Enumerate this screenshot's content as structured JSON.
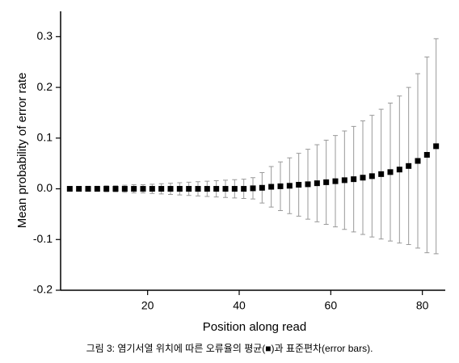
{
  "chart_data": {
    "type": "errorbar",
    "xlabel": "Position along read",
    "ylabel": "Mean probability of error rate",
    "caption": "그림 3: 염기서열 위치에 따른 오류율의 평균(■)과 표준편차(error bars).",
    "x": [
      3,
      5,
      7,
      9,
      11,
      13,
      15,
      17,
      19,
      21,
      23,
      25,
      27,
      29,
      31,
      33,
      35,
      37,
      39,
      41,
      43,
      45,
      47,
      49,
      51,
      53,
      55,
      57,
      59,
      61,
      63,
      65,
      67,
      69,
      71,
      73,
      75,
      77,
      79,
      81,
      83
    ],
    "series": [
      {
        "color": "#000000",
        "error_color": "#999999",
        "values": [
          0,
          0,
          0,
          0,
          0,
          0,
          0,
          0,
          0,
          0,
          0,
          0,
          0,
          0,
          0,
          0,
          0,
          0,
          0,
          0,
          0.001,
          0.002,
          0.004,
          0.005,
          0.006,
          0.008,
          0.009,
          0.011,
          0.013,
          0.015,
          0.017,
          0.019,
          0.022,
          0.025,
          0.029,
          0.033,
          0.038,
          0.045,
          0.055,
          0.067,
          0.084
        ],
        "errors": [
          0.004,
          0.004,
          0.005,
          0.005,
          0.006,
          0.006,
          0.007,
          0.008,
          0.008,
          0.009,
          0.01,
          0.011,
          0.012,
          0.013,
          0.014,
          0.015,
          0.016,
          0.017,
          0.018,
          0.019,
          0.021,
          0.03,
          0.04,
          0.048,
          0.055,
          0.062,
          0.069,
          0.076,
          0.083,
          0.09,
          0.097,
          0.104,
          0.112,
          0.12,
          0.128,
          0.136,
          0.145,
          0.155,
          0.172,
          0.193,
          0.212
        ]
      }
    ],
    "xlim": [
      1,
      85
    ],
    "xticks": [
      20,
      40,
      60,
      80
    ],
    "ylim": [
      -0.2,
      0.35
    ],
    "yticks": [
      -0.2,
      -0.1,
      {
        "value": 0,
        "label": "0.0"
      },
      0.1,
      0.2,
      0.3
    ]
  }
}
